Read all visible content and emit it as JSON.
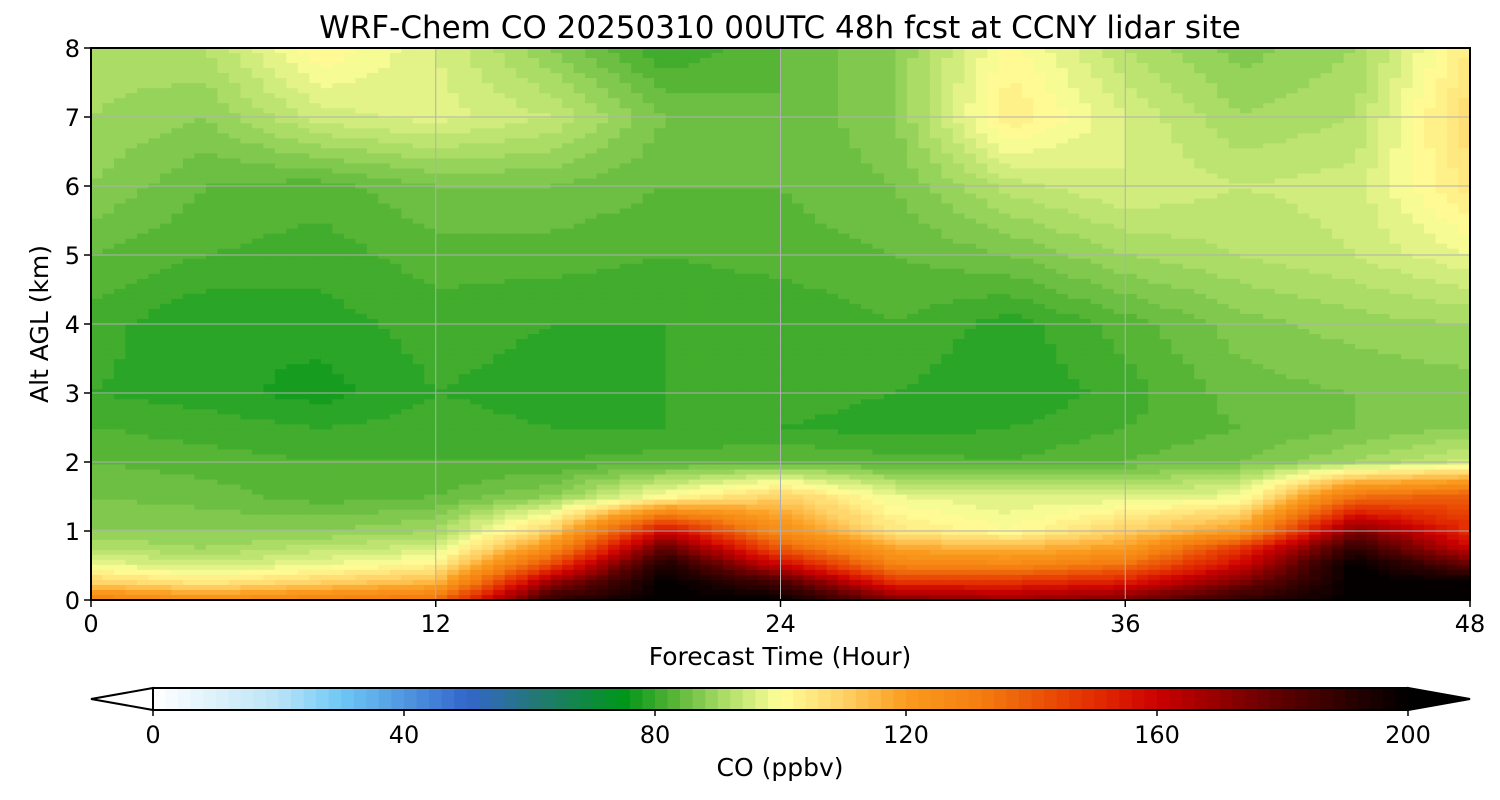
{
  "chart_data": {
    "type": "heatmap",
    "subtype": "filled-contour",
    "title": "WRF-Chem CO  20250310 00UTC 48h fcst at CCNY lidar site",
    "xlabel": "Forecast Time (Hour)",
    "ylabel": "Alt AGL (km)",
    "xlim": [
      0,
      48
    ],
    "ylim": [
      0,
      8
    ],
    "x_ticks": [
      "0",
      "12",
      "24",
      "36",
      "48"
    ],
    "y_ticks": [
      "0",
      "1",
      "2",
      "3",
      "4",
      "5",
      "6",
      "7",
      "8"
    ],
    "grid": true,
    "x": [
      0,
      4,
      8,
      12,
      16,
      20,
      24,
      28,
      32,
      36,
      40,
      44,
      48
    ],
    "y": [
      0,
      0.25,
      0.5,
      0.75,
      1,
      1.5,
      2,
      2.5,
      3,
      4,
      5,
      6,
      7,
      8
    ],
    "z": [
      [
        130,
        125,
        130,
        135,
        190,
        200,
        200,
        175,
        170,
        175,
        190,
        200,
        200
      ],
      [
        110,
        105,
        110,
        115,
        170,
        200,
        185,
        150,
        150,
        155,
        175,
        200,
        200
      ],
      [
        98,
        95,
        98,
        103,
        145,
        195,
        160,
        130,
        128,
        135,
        160,
        200,
        180
      ],
      [
        92,
        90,
        93,
        95,
        125,
        180,
        140,
        118,
        115,
        120,
        148,
        190,
        160
      ],
      [
        88,
        88,
        88,
        90,
        110,
        160,
        125,
        105,
        100,
        110,
        120,
        175,
        150
      ],
      [
        86,
        85,
        83,
        84,
        88,
        100,
        110,
        98,
        96,
        96,
        98,
        135,
        140
      ],
      [
        84,
        83,
        82,
        82,
        82,
        83,
        84,
        83,
        82,
        84,
        86,
        90,
        95
      ],
      [
        82,
        81,
        80,
        81,
        80,
        80,
        80,
        79,
        80,
        82,
        84,
        86,
        88
      ],
      [
        80,
        79,
        77,
        80,
        79,
        80,
        81,
        80,
        78,
        81,
        85,
        86,
        87
      ],
      [
        81,
        78,
        79,
        81,
        80,
        80,
        80,
        82,
        79,
        83,
        87,
        89,
        90
      ],
      [
        84,
        82,
        81,
        83,
        83,
        82,
        83,
        84,
        86,
        90,
        92,
        94,
        98
      ],
      [
        88,
        84,
        83,
        86,
        86,
        84,
        84,
        86,
        93,
        96,
        94,
        95,
        105
      ],
      [
        90,
        88,
        95,
        97,
        94,
        86,
        84,
        88,
        104,
        96,
        90,
        92,
        108
      ],
      [
        91,
        92,
        102,
        96,
        88,
        80,
        84,
        88,
        101,
        92,
        87,
        90,
        104
      ]
    ],
    "colorbar": {
      "label": "CO  (ppbv)",
      "ticks": [
        "0",
        "40",
        "80",
        "120",
        "160",
        "200"
      ],
      "min": 0,
      "max": 200,
      "extend": "both",
      "levels": 100
    },
    "colormap_stops": [
      {
        "v": 0,
        "c": "#ffffff"
      },
      {
        "v": 20,
        "c": "#b9e4f7"
      },
      {
        "v": 30,
        "c": "#6ec8f5"
      },
      {
        "v": 50,
        "c": "#3366cc"
      },
      {
        "v": 62,
        "c": "#217a6e"
      },
      {
        "v": 75,
        "c": "#00961a"
      },
      {
        "v": 82,
        "c": "#4cb030"
      },
      {
        "v": 90,
        "c": "#a0d860"
      },
      {
        "v": 100,
        "c": "#ffff99"
      },
      {
        "v": 110,
        "c": "#ffd166"
      },
      {
        "v": 120,
        "c": "#fb9c1e"
      },
      {
        "v": 132,
        "c": "#f47d10"
      },
      {
        "v": 150,
        "c": "#e32d00"
      },
      {
        "v": 160,
        "c": "#cc0000"
      },
      {
        "v": 180,
        "c": "#5c0000"
      },
      {
        "v": 200,
        "c": "#000000"
      }
    ]
  }
}
